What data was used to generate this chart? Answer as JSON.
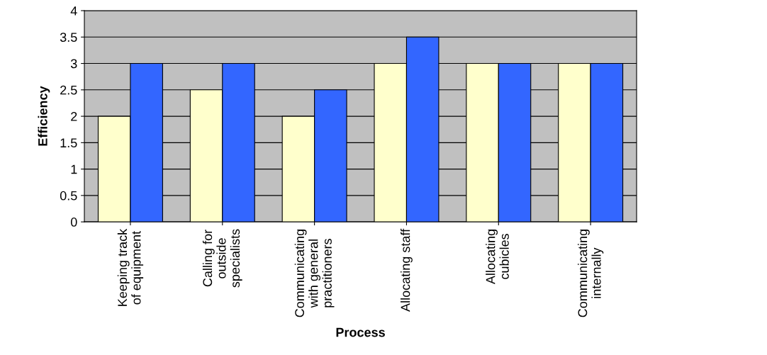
{
  "chart_data": {
    "type": "bar",
    "xlabel": "Process",
    "ylabel": "Efficiency",
    "categories": [
      "Keeping track\nof equipment",
      "Calling for\noutside\nspecialists",
      "Communicating\nwith general\npractitioners",
      "Allocating staff",
      "Allocating\ncubicles",
      "Communicating\ninternally"
    ],
    "series": [
      {
        "color": "#ffffcc",
        "values": [
          2,
          2.5,
          2,
          3,
          3,
          3
        ]
      },
      {
        "color": "#3366ff",
        "values": [
          3,
          3,
          2.5,
          3.5,
          3,
          3
        ]
      }
    ],
    "ylim": [
      0,
      4
    ],
    "yticks": [
      0,
      0.5,
      1,
      1.5,
      2,
      2.5,
      3,
      3.5,
      4
    ],
    "grid": "y"
  }
}
